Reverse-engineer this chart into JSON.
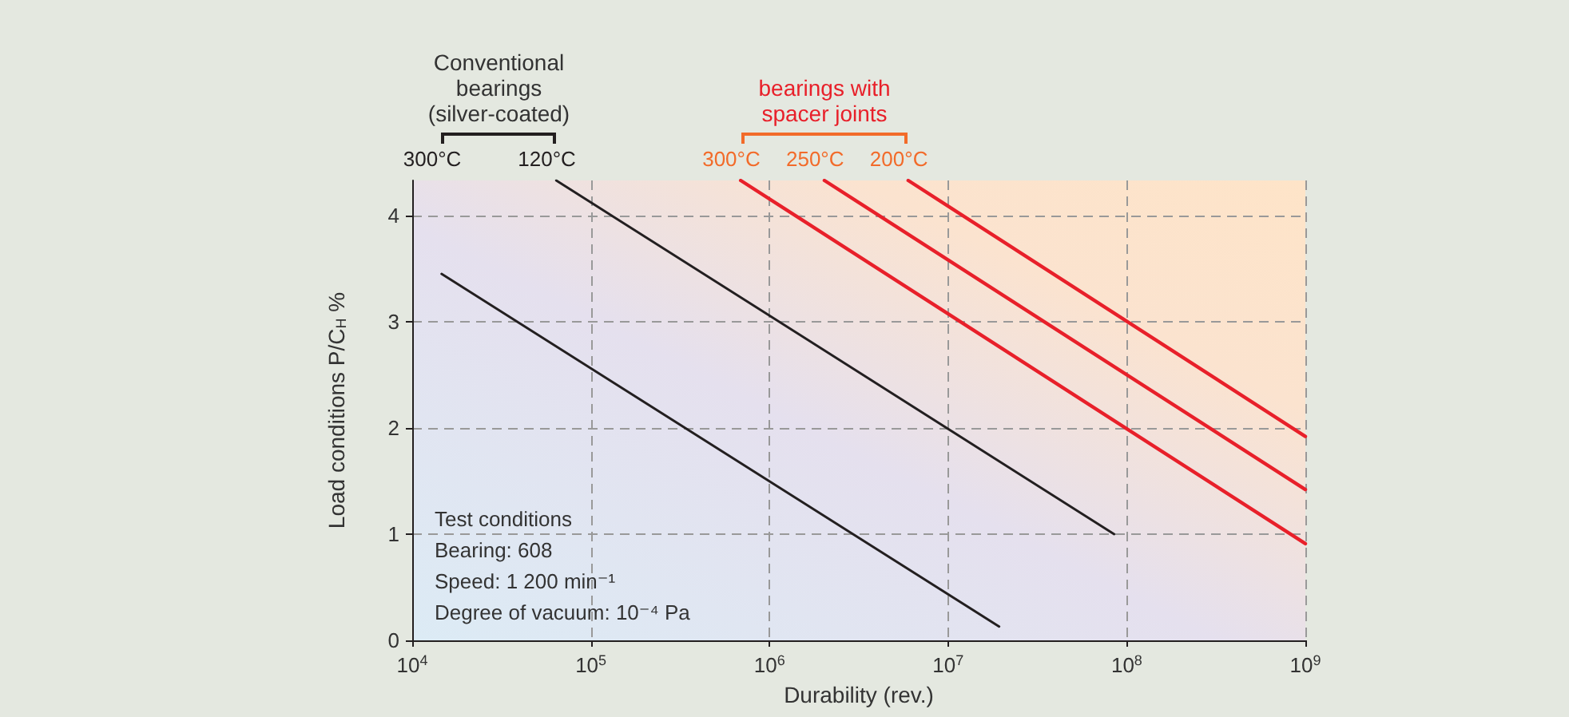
{
  "chart_data": {
    "type": "line",
    "xlabel": "Durability (rev.)",
    "ylabel": "Load conditions P/C$_{H}$ %",
    "log": "x",
    "xlim": [
      10000,
      1000000000
    ],
    "xticks": [
      {
        "value": 10000,
        "label": "10$^{4}$"
      },
      {
        "value": 100000,
        "label": "10$^{5}$"
      },
      {
        "value": 1000000,
        "label": "10$^{6}$"
      },
      {
        "value": 10000000,
        "label": "10$^{7}$"
      },
      {
        "value": 100000000,
        "label": "10$^{8}$"
      },
      {
        "value": 1000000000,
        "label": "10$^{9}$"
      }
    ],
    "ylim": [
      0,
      4.33
    ],
    "yticks": [
      0,
      1,
      2,
      3,
      4
    ],
    "grid": true,
    "legend": "top",
    "marker": "none",
    "line_style": "solid",
    "series": [
      {
        "name": "300°C",
        "color": "#231f20",
        "x": [
          14600,
          19300000
        ],
        "values": [
          3.45,
          0.13
        ]
      },
      {
        "name": "120°C",
        "color": "#231f20",
        "x": [
          64000,
          85000000
        ],
        "values": [
          4.33,
          1.0
        ]
      },
      {
        "name": "300°C",
        "color": "#e8202a",
        "x": [
          690000,
          1000000000
        ],
        "values": [
          4.33,
          0.91
        ]
      },
      {
        "name": "250°C",
        "color": "#e8202a",
        "x": [
          2030000,
          1000000000
        ],
        "values": [
          4.33,
          1.42
        ]
      },
      {
        "name": "200°C",
        "color": "#e8202a",
        "x": [
          5980000,
          1000000000
        ],
        "values": [
          4.33,
          1.92
        ]
      }
    ],
    "annotations": [
      "Conventional\nbearings\n(silver-coated)",
      "bearings with\nspacer joints",
      "Test conditions\nBearing: 608\nSpeed: 1 200 min⁻¹\nDegree of vacuum: 10⁻⁴ Pa"
    ]
  }
}
